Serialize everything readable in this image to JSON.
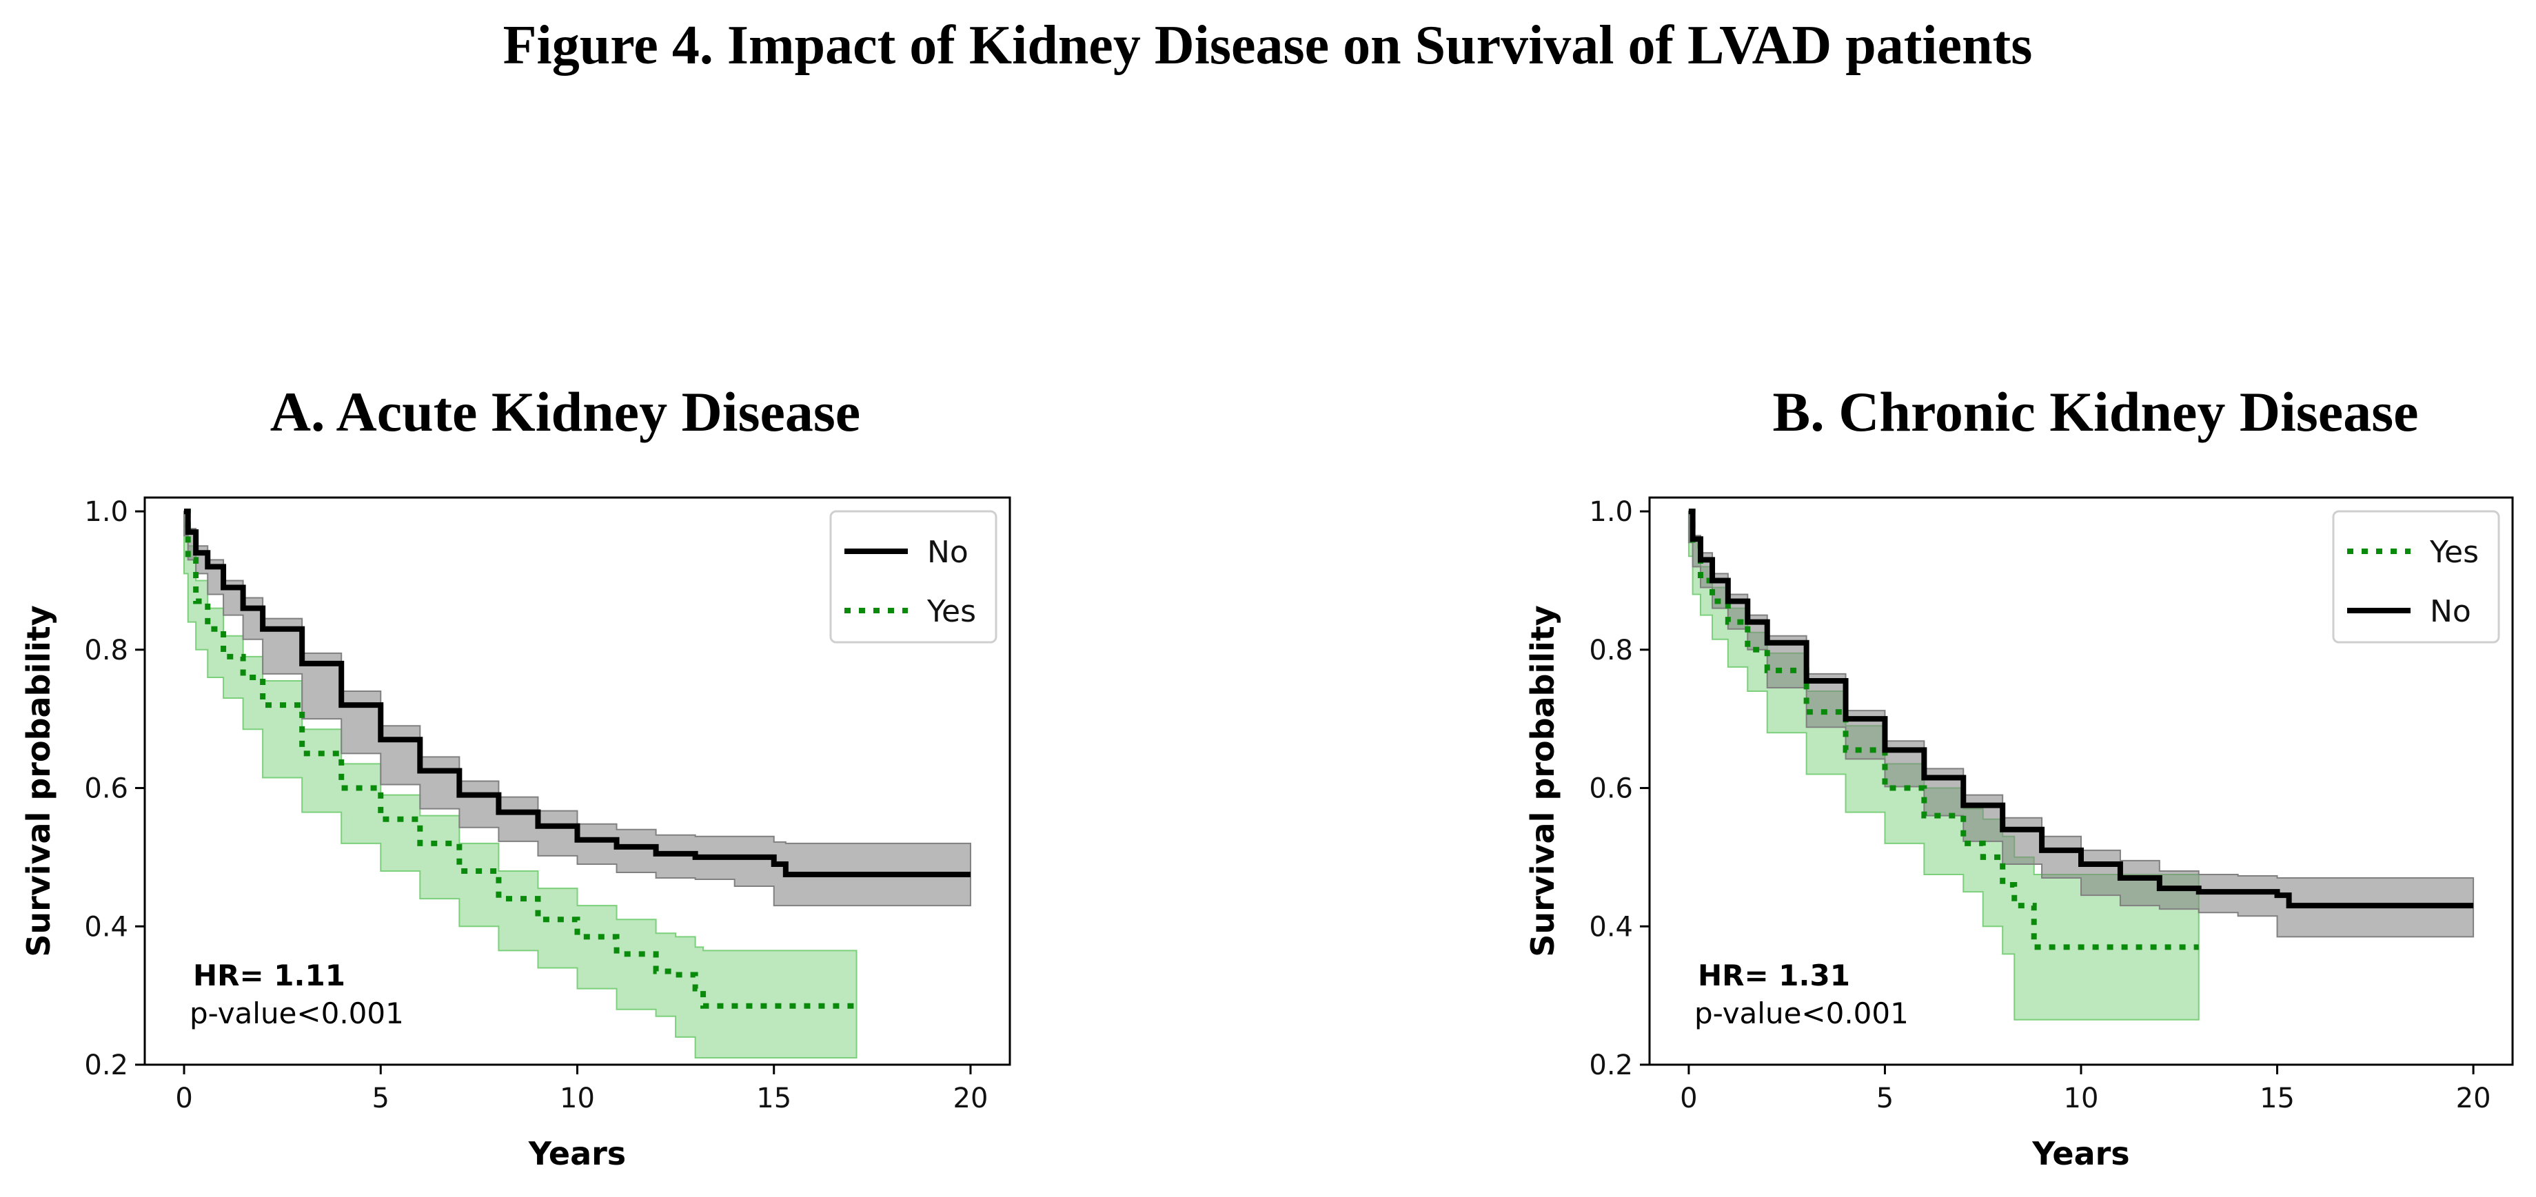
{
  "figure_title": "Figure 4. Impact of Kidney Disease on Survival of LVAD patients",
  "colors": {
    "no_line": "#000000",
    "no_band": "#808080",
    "yes_line": "#0a8a0a",
    "yes_band": "#7cd07c"
  },
  "chart_data": [
    {
      "type": "line",
      "panel": "A",
      "title": "A.  Acute Kidney Disease",
      "xlabel": "Years",
      "ylabel": "Survival probability",
      "xlim": [
        -1,
        21
      ],
      "ylim": [
        0.2,
        1.02
      ],
      "xticks": [
        0,
        5,
        10,
        15,
        20
      ],
      "yticks": [
        0.2,
        0.4,
        0.6,
        0.8,
        1.0
      ],
      "xtick_labels": [
        "0",
        "5",
        "10",
        "15",
        "20"
      ],
      "ytick_labels": [
        "0.2",
        "0.4",
        "0.6",
        "0.8",
        "1.0"
      ],
      "legend": {
        "position": "top-right",
        "order": [
          "No",
          "Yes"
        ]
      },
      "annotation": {
        "hr": "HR= 1.11",
        "p": "p-value<0.001"
      },
      "series": [
        {
          "name": "No",
          "style": "solid",
          "x": [
            0,
            0.1,
            0.3,
            0.6,
            1,
            1.5,
            2,
            3,
            4,
            5,
            6,
            7,
            8,
            9,
            10,
            11,
            12,
            13,
            14,
            15,
            15.3,
            16,
            17,
            18,
            19,
            20
          ],
          "y": [
            1.0,
            0.97,
            0.94,
            0.92,
            0.89,
            0.86,
            0.83,
            0.78,
            0.72,
            0.67,
            0.625,
            0.59,
            0.565,
            0.545,
            0.525,
            0.515,
            0.505,
            0.5,
            0.5,
            0.49,
            0.475,
            0.475,
            0.475,
            0.475,
            0.475,
            0.475
          ],
          "ci_upper": [
            1.0,
            0.975,
            0.95,
            0.93,
            0.9,
            0.875,
            0.845,
            0.795,
            0.74,
            0.69,
            0.645,
            0.61,
            0.587,
            0.567,
            0.548,
            0.54,
            0.532,
            0.53,
            0.53,
            0.522,
            0.52,
            0.52,
            0.52,
            0.52,
            0.52,
            0.52
          ],
          "ci_lower": [
            1.0,
            0.965,
            0.93,
            0.91,
            0.88,
            0.85,
            0.815,
            0.765,
            0.7,
            0.65,
            0.605,
            0.57,
            0.543,
            0.523,
            0.502,
            0.49,
            0.478,
            0.47,
            0.468,
            0.458,
            0.43,
            0.43,
            0.43,
            0.43,
            0.43,
            0.43
          ]
        },
        {
          "name": "Yes",
          "style": "dotted",
          "x": [
            0,
            0.1,
            0.3,
            0.6,
            1,
            1.5,
            2,
            3,
            4,
            5,
            6,
            7,
            8,
            9,
            10,
            11,
            12,
            12.5,
            13,
            13.2,
            14,
            15,
            16,
            17,
            17.1
          ],
          "y": [
            1.0,
            0.93,
            0.87,
            0.83,
            0.79,
            0.76,
            0.72,
            0.65,
            0.6,
            0.555,
            0.52,
            0.48,
            0.44,
            0.41,
            0.385,
            0.36,
            0.335,
            0.33,
            0.31,
            0.285,
            0.285,
            0.285,
            0.285,
            0.285,
            0.285
          ],
          "ci_upper": [
            1.0,
            0.95,
            0.9,
            0.86,
            0.82,
            0.79,
            0.755,
            0.685,
            0.635,
            0.59,
            0.56,
            0.52,
            0.48,
            0.455,
            0.43,
            0.41,
            0.39,
            0.385,
            0.37,
            0.365,
            0.365,
            0.365,
            0.365,
            0.365,
            0.365
          ],
          "ci_lower": [
            1.0,
            0.91,
            0.84,
            0.8,
            0.76,
            0.73,
            0.685,
            0.615,
            0.565,
            0.52,
            0.48,
            0.44,
            0.4,
            0.365,
            0.34,
            0.31,
            0.28,
            0.27,
            0.24,
            0.21,
            0.21,
            0.21,
            0.21,
            0.21,
            0.21
          ]
        }
      ]
    },
    {
      "type": "line",
      "panel": "B",
      "title": "B. Chronic Kidney Disease",
      "xlabel": "Years",
      "ylabel": "Survival probability",
      "xlim": [
        -1,
        21
      ],
      "ylim": [
        0.2,
        1.02
      ],
      "xticks": [
        0,
        5,
        10,
        15,
        20
      ],
      "yticks": [
        0.2,
        0.4,
        0.6,
        0.8,
        1.0
      ],
      "xtick_labels": [
        "0",
        "5",
        "10",
        "15",
        "20"
      ],
      "ytick_labels": [
        "0.2",
        "0.4",
        "0.6",
        "0.8",
        "1.0"
      ],
      "legend": {
        "position": "top-right",
        "order": [
          "Yes",
          "No"
        ]
      },
      "annotation": {
        "hr": "HR= 1.31",
        "p": "p-value<0.001"
      },
      "series": [
        {
          "name": "No",
          "style": "solid",
          "x": [
            0,
            0.1,
            0.3,
            0.6,
            1,
            1.5,
            2,
            3,
            4,
            5,
            6,
            7,
            8,
            9,
            10,
            11,
            12,
            13,
            14,
            15,
            15.3,
            16,
            17,
            18,
            19,
            20
          ],
          "y": [
            1.0,
            0.96,
            0.93,
            0.9,
            0.87,
            0.84,
            0.81,
            0.755,
            0.7,
            0.655,
            0.615,
            0.575,
            0.54,
            0.51,
            0.49,
            0.47,
            0.455,
            0.45,
            0.45,
            0.445,
            0.43,
            0.43,
            0.43,
            0.43,
            0.43,
            0.43
          ],
          "ci_upper": [
            1.0,
            0.965,
            0.94,
            0.91,
            0.88,
            0.85,
            0.82,
            0.765,
            0.712,
            0.668,
            0.628,
            0.59,
            0.557,
            0.53,
            0.51,
            0.495,
            0.48,
            0.475,
            0.473,
            0.47,
            0.47,
            0.47,
            0.47,
            0.47,
            0.47,
            0.47
          ],
          "ci_lower": [
            1.0,
            0.955,
            0.92,
            0.89,
            0.86,
            0.83,
            0.8,
            0.745,
            0.688,
            0.642,
            0.602,
            0.56,
            0.523,
            0.49,
            0.47,
            0.445,
            0.43,
            0.425,
            0.42,
            0.415,
            0.385,
            0.385,
            0.385,
            0.385,
            0.385,
            0.385
          ]
        },
        {
          "name": "Yes",
          "style": "dotted",
          "x": [
            0,
            0.1,
            0.3,
            0.6,
            1,
            1.5,
            2,
            3,
            4,
            5,
            6,
            7,
            7.5,
            8,
            8.3,
            8.8,
            9,
            10,
            11,
            12,
            13
          ],
          "y": [
            1.0,
            0.95,
            0.9,
            0.87,
            0.84,
            0.8,
            0.77,
            0.71,
            0.655,
            0.6,
            0.56,
            0.52,
            0.5,
            0.46,
            0.43,
            0.37,
            0.37,
            0.37,
            0.37,
            0.37,
            0.37
          ],
          "ci_upper": [
            1.0,
            0.965,
            0.92,
            0.89,
            0.86,
            0.825,
            0.795,
            0.74,
            0.69,
            0.635,
            0.6,
            0.57,
            0.555,
            0.53,
            0.5,
            0.475,
            0.475,
            0.475,
            0.475,
            0.475,
            0.475
          ],
          "ci_lower": [
            1.0,
            0.935,
            0.88,
            0.85,
            0.815,
            0.775,
            0.74,
            0.68,
            0.62,
            0.565,
            0.52,
            0.475,
            0.45,
            0.4,
            0.36,
            0.265,
            0.265,
            0.265,
            0.265,
            0.265,
            0.265
          ]
        }
      ]
    }
  ]
}
